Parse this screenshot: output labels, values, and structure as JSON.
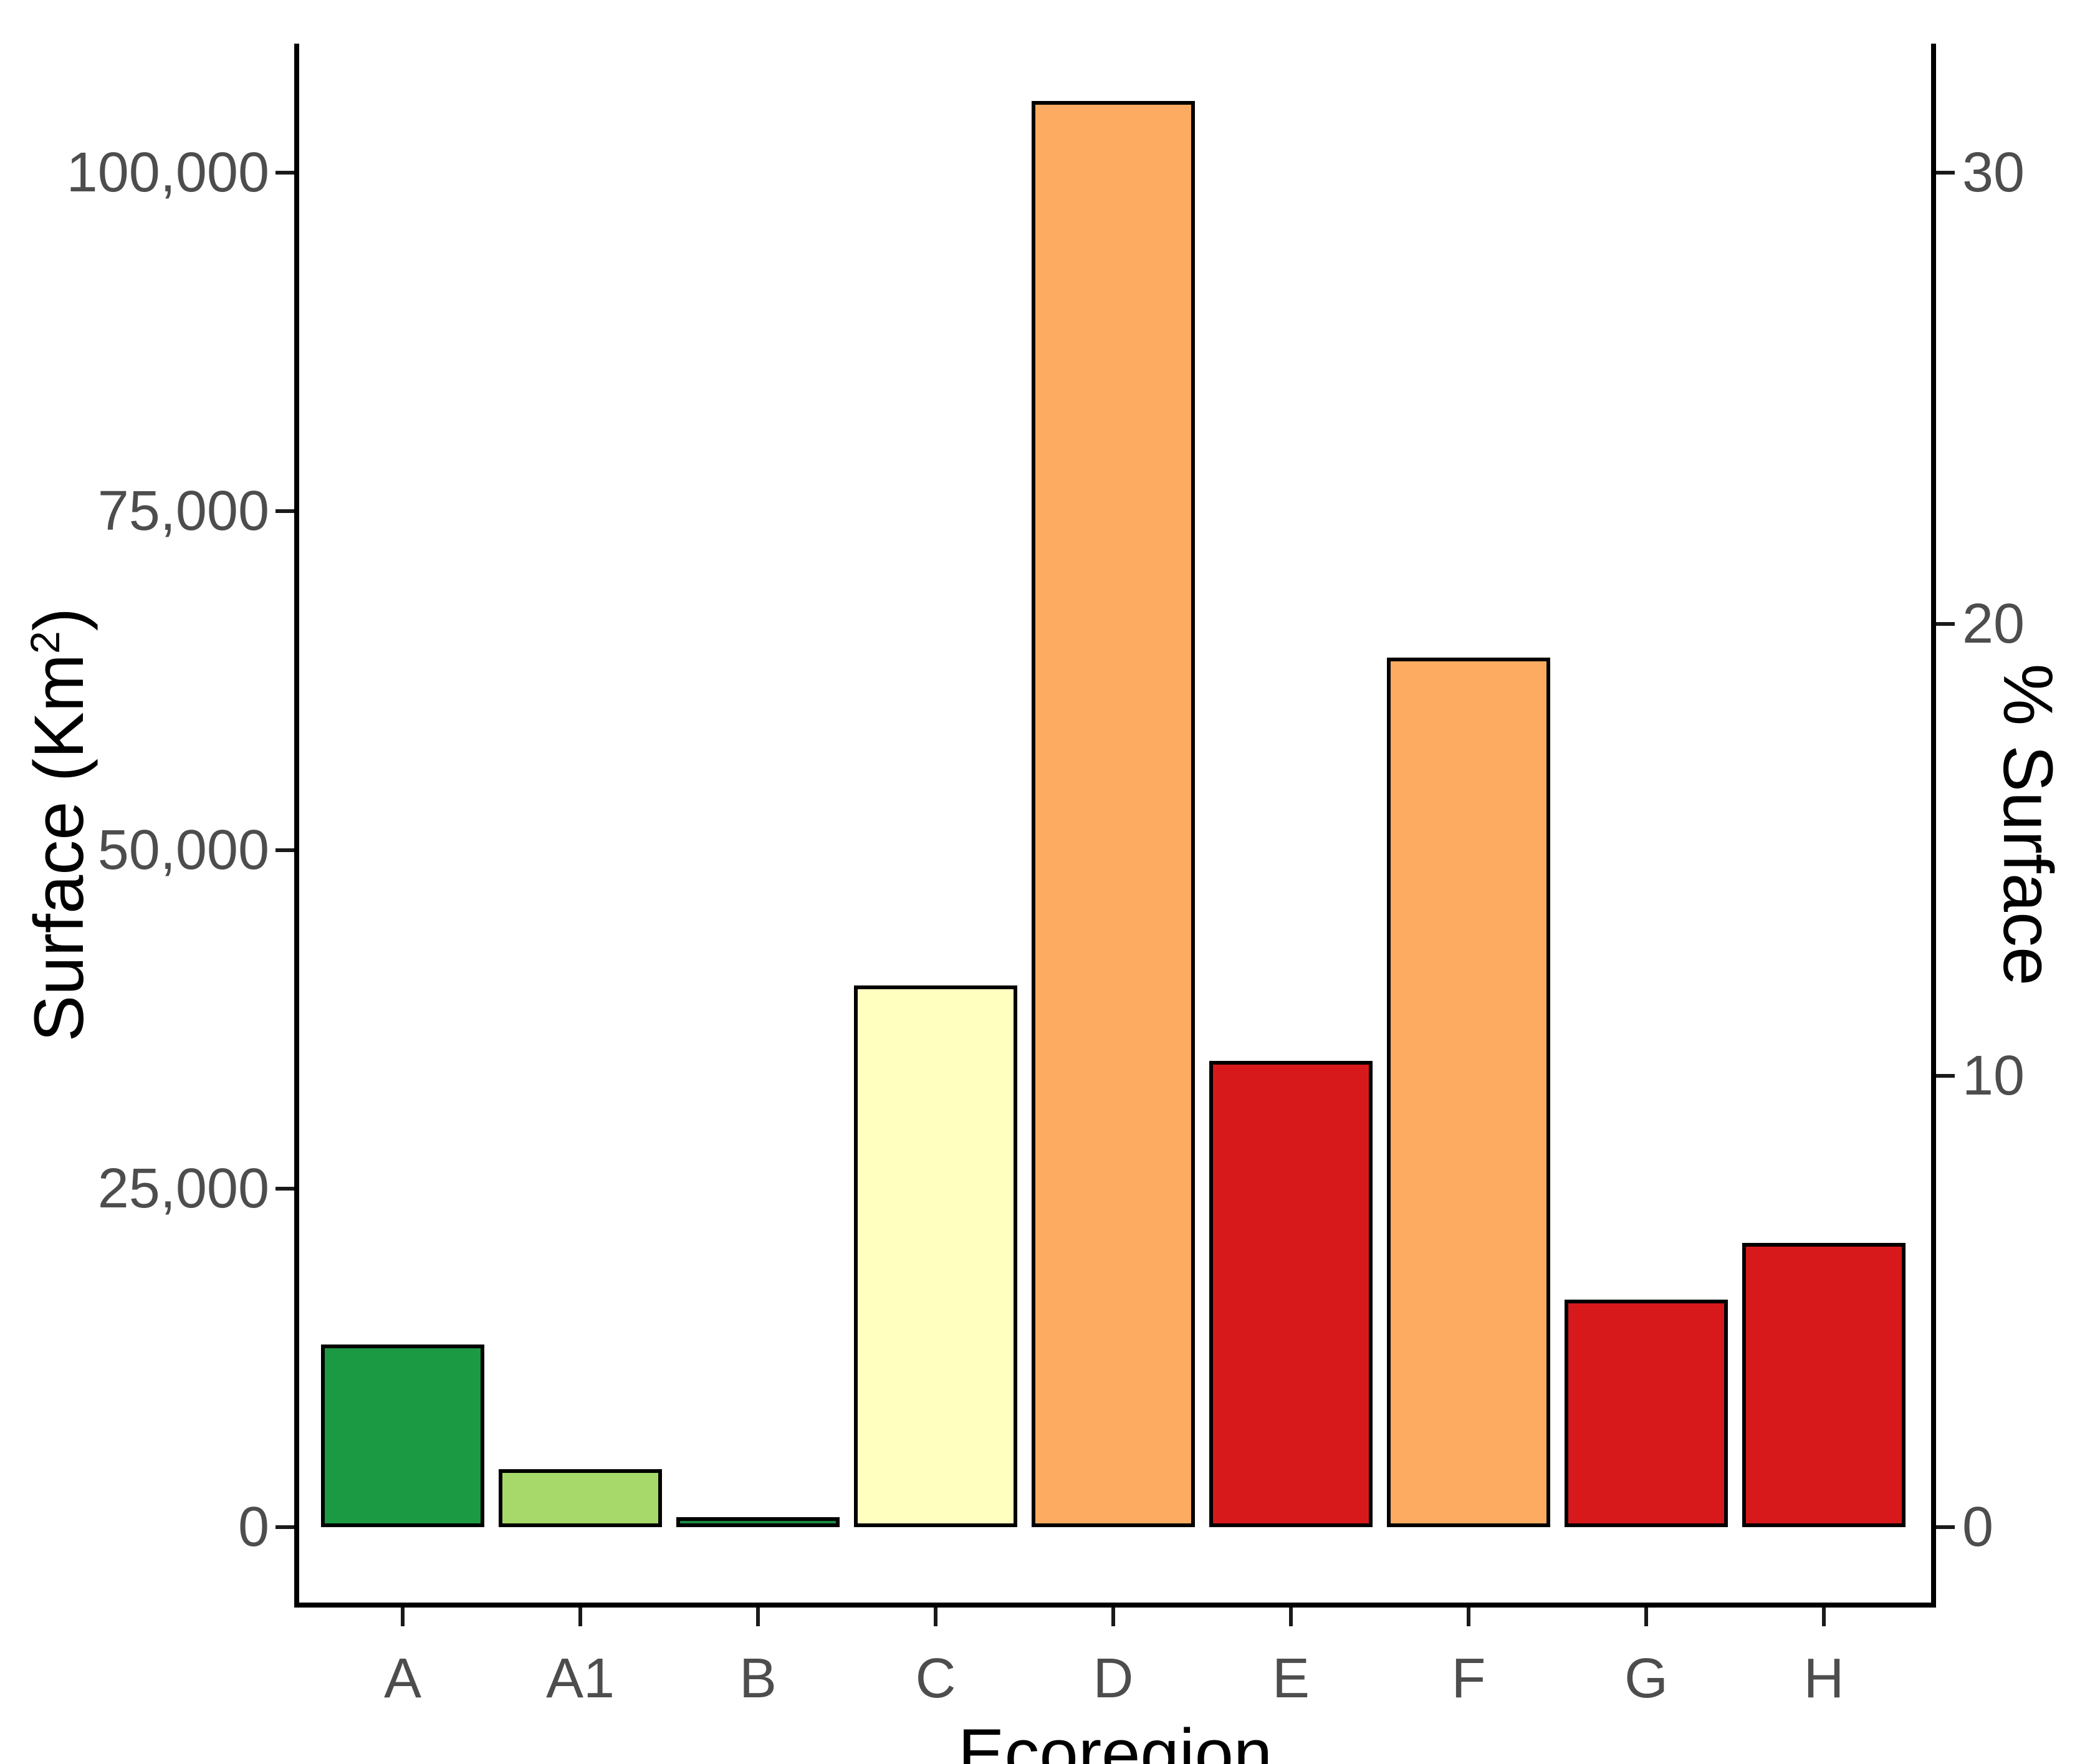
{
  "chart_data": {
    "type": "bar",
    "title": "",
    "xlabel": "Ecoregion",
    "ylabel_left": {
      "pre": "Surface (Km",
      "sup": "2",
      "post": ")"
    },
    "ylabel_right": "% Surface",
    "categories": [
      "A",
      "A1",
      "B",
      "C",
      "D",
      "E",
      "F",
      "G",
      "H"
    ],
    "values": [
      13500,
      4300,
      750,
      40000,
      105300,
      34400,
      64200,
      16800,
      21000
    ],
    "pct_values": [
      4.1,
      1.3,
      0.2,
      12.0,
      31.6,
      10.3,
      19.3,
      5.0,
      6.3
    ],
    "bar_colors": [
      "#1C9943",
      "#A6D96A",
      "#1B8A42",
      "#FFFFBF",
      "#FCAB61",
      "#D7191C",
      "#FCAB61",
      "#D7191C",
      "#D7191C"
    ],
    "bar_border_color": "#000000",
    "axis_line_color": "#000000",
    "tick_label_color": "#4d4d4d",
    "y_left": {
      "ticks": [
        0,
        25000,
        50000,
        75000,
        100000
      ],
      "tick_labels": [
        "0",
        "25,000",
        "50,000",
        "75,000",
        "100,000"
      ],
      "ylim": [
        0,
        109500
      ]
    },
    "y_right": {
      "ticks": [
        0,
        10,
        20,
        30
      ],
      "tick_labels": [
        "0",
        "10",
        "20",
        "30"
      ],
      "ylim": [
        0,
        32.85
      ]
    },
    "grid": "off",
    "legend": "none"
  }
}
